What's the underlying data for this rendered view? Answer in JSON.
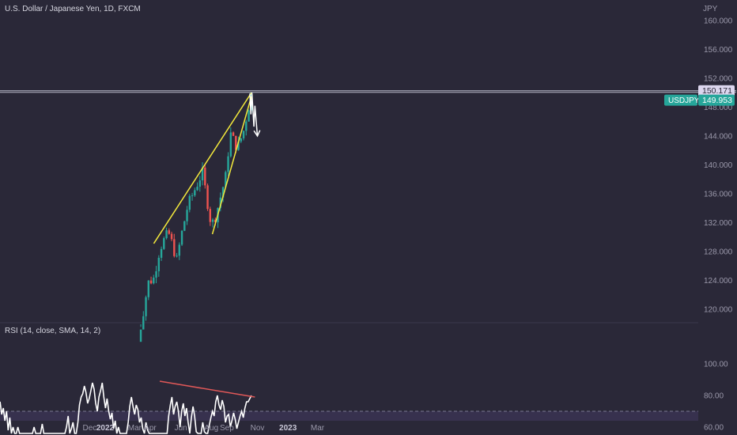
{
  "header": {
    "title": "U.S. Dollar / Japanese Yen, 1D, FXCM",
    "currency_unit": "JPY"
  },
  "rsi_panel": {
    "label": "RSI (14, close, SMA, 14, 2)"
  },
  "price_tags": {
    "high_label": "150.171",
    "symbol": "USDJPY",
    "last_label": "149.953"
  },
  "colors": {
    "background": "#2a2838",
    "up": "#26a69a",
    "down": "#ef5350",
    "trendline": "#f4ea3c",
    "rsi_line": "#ffffff",
    "rsi_divergence": "#e05858",
    "rsi_band": "#3c3455",
    "axis_text": "#9a98aa",
    "hline": "#b8b8c8",
    "symbol_tag": "#26a69a",
    "high_tag": "#dcd6ee"
  },
  "chart_data": [
    {
      "type": "candlestick",
      "title": "U.S. Dollar / Japanese Yen, 1D, FXCM",
      "ylabel": "JPY",
      "yticks": [
        "160.000",
        "156.000",
        "152.000",
        "148.000",
        "144.000",
        "140.000",
        "136.000",
        "132.000",
        "128.000",
        "124.000",
        "120.000"
      ],
      "ylim": [
        118,
        160
      ],
      "xticks": [
        "Dec",
        "2022",
        "Mar",
        "Apr",
        "Jun",
        "Aug",
        "Sep",
        "Nov",
        "2023",
        "Mar"
      ],
      "horizontal_line": 150.171,
      "last_price": 149.953,
      "trendlines": [
        {
          "name": "upper",
          "from": [
            "2022-04-08",
            129.1
          ],
          "to": [
            "2022-10-20",
            150.0
          ]
        },
        {
          "name": "lower",
          "from": [
            "2022-08-03",
            130.4
          ],
          "to": [
            "2022-10-20",
            149.5
          ]
        }
      ],
      "projection_arrow": [
        [
          "2022-10-17",
          149.9
        ],
        [
          "2022-10-19",
          147.0
        ],
        [
          "2022-10-21",
          150.0
        ],
        [
          "2022-10-25",
          145.3
        ],
        [
          "2022-10-27",
          148.2
        ],
        [
          "2022-11-01",
          144.0
        ]
      ],
      "key_points": [
        {
          "date": "2022-03-08",
          "close": 115.5
        },
        {
          "date": "2022-03-28",
          "close": 123.7
        },
        {
          "date": "2022-04-08",
          "close": 124.3
        },
        {
          "date": "2022-04-20",
          "close": 128.4
        },
        {
          "date": "2022-05-02",
          "close": 130.1
        },
        {
          "date": "2022-05-09",
          "close": 130.4
        },
        {
          "date": "2022-05-24",
          "close": 126.8
        },
        {
          "date": "2022-06-01",
          "close": 129.9
        },
        {
          "date": "2022-06-15",
          "close": 134.4
        },
        {
          "date": "2022-06-29",
          "close": 136.6
        },
        {
          "date": "2022-07-14",
          "close": 139.0
        },
        {
          "date": "2022-08-01",
          "close": 131.6
        },
        {
          "date": "2022-08-10",
          "close": 133.0
        },
        {
          "date": "2022-08-31",
          "close": 138.8
        },
        {
          "date": "2022-09-07",
          "close": 144.5
        },
        {
          "date": "2022-09-22",
          "close": 142.3
        },
        {
          "date": "2022-10-04",
          "close": 144.6
        },
        {
          "date": "2022-10-20",
          "close": 149.9
        }
      ]
    },
    {
      "type": "line",
      "title": "RSI (14, close, SMA, 14, 2)",
      "yticks": [
        "100.00",
        "80.00",
        "60.00"
      ],
      "ylim": [
        40,
        100
      ],
      "band": [
        30,
        70
      ],
      "series": [
        {
          "values": [
            73,
            76,
            68,
            72,
            64,
            70,
            58,
            66,
            50,
            60,
            55,
            45,
            60,
            52,
            38,
            48,
            35,
            32,
            44,
            33,
            46,
            56,
            60,
            40,
            35,
            44,
            52,
            62,
            48,
            40,
            46,
            32,
            36,
            22,
            28,
            42,
            38,
            32,
            36,
            42,
            53,
            50,
            60,
            67,
            56,
            59,
            63,
            52,
            56,
            63,
            74,
            79,
            81,
            86,
            82,
            75,
            78,
            83,
            88,
            84,
            75,
            70,
            79,
            83,
            88,
            79,
            72,
            78,
            70,
            65,
            69,
            59,
            64,
            54,
            60,
            53,
            44,
            39,
            46,
            52,
            63,
            73,
            79,
            73,
            68,
            74,
            71,
            63,
            66,
            59,
            54,
            63,
            58,
            52,
            48,
            54,
            50,
            41,
            34,
            44,
            47,
            43,
            36,
            46,
            56,
            67,
            74,
            79,
            68,
            73,
            76,
            70,
            60,
            70,
            75,
            67,
            72,
            63,
            56,
            66,
            73,
            67,
            57,
            50,
            46,
            55,
            63,
            57,
            52,
            56,
            61,
            66,
            70,
            67,
            76,
            80,
            74,
            71,
            77,
            73,
            63,
            67,
            68,
            60,
            64,
            69,
            65,
            59,
            63,
            67,
            70,
            66,
            72,
            76,
            76,
            78,
            80
          ]
        }
      ],
      "divergence_line": {
        "from": [
          "2022-04-20",
          89
        ],
        "to": [
          "2022-10-27",
          79
        ]
      }
    }
  ]
}
